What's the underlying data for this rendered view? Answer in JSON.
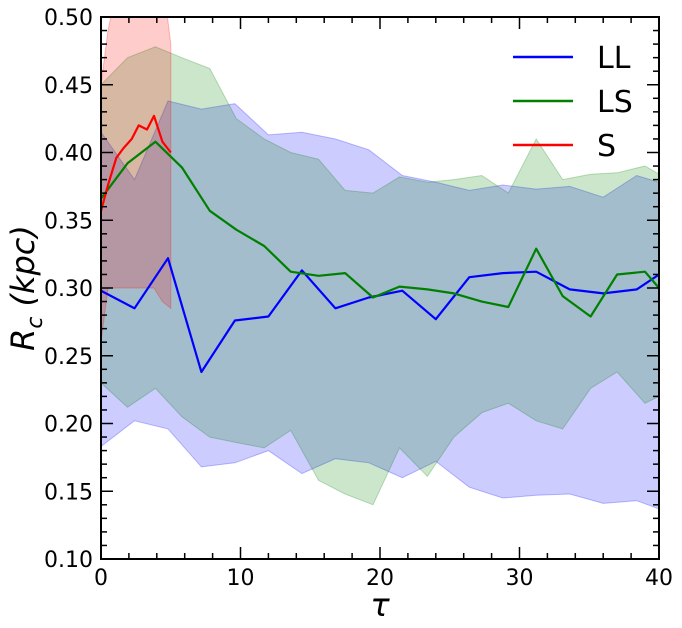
{
  "chart_data": {
    "type": "line",
    "xlabel": "τ",
    "ylabel_main": "R",
    "ylabel_sub": "c",
    "ylabel_unit": "(kpc)",
    "xlim": [
      0,
      40
    ],
    "ylim": [
      0.1,
      0.5
    ],
    "grid": false,
    "legend_position": "top-right",
    "x_ticks": [
      0,
      10,
      20,
      30,
      40
    ],
    "x_tick_labels": [
      "0",
      "10",
      "20",
      "30",
      "40"
    ],
    "y_ticks": [
      0.1,
      0.15,
      0.2,
      0.25,
      0.3,
      0.35,
      0.4,
      0.45,
      0.5
    ],
    "y_tick_labels": [
      "0.10",
      "0.15",
      "0.20",
      "0.25",
      "0.30",
      "0.35",
      "0.40",
      "0.45",
      "0.50"
    ],
    "series": [
      {
        "name": "LL",
        "color": "#0000ff",
        "band_color": "#0000ff",
        "x": [
          0,
          2.4,
          4.8,
          7.2,
          9.6,
          12.0,
          14.4,
          16.8,
          19.2,
          21.6,
          24.0,
          26.4,
          28.8,
          31.2,
          33.6,
          36.0,
          38.4,
          40.0
        ],
        "y": [
          0.298,
          0.285,
          0.322,
          0.238,
          0.276,
          0.279,
          0.313,
          0.285,
          0.293,
          0.298,
          0.277,
          0.308,
          0.311,
          0.312,
          0.299,
          0.296,
          0.299,
          0.31
        ],
        "upper": [
          0.415,
          0.38,
          0.438,
          0.432,
          0.436,
          0.413,
          0.415,
          0.41,
          0.402,
          0.383,
          0.378,
          0.372,
          0.376,
          0.373,
          0.375,
          0.367,
          0.383,
          0.378
        ],
        "lower": [
          0.183,
          0.202,
          0.196,
          0.168,
          0.171,
          0.18,
          0.163,
          0.174,
          0.171,
          0.16,
          0.172,
          0.153,
          0.145,
          0.147,
          0.148,
          0.141,
          0.143,
          0.137
        ]
      },
      {
        "name": "LS",
        "color": "#008000",
        "band_color": "#008000",
        "x": [
          0,
          1.9,
          3.9,
          5.8,
          7.8,
          9.7,
          11.7,
          13.6,
          15.6,
          17.5,
          19.5,
          21.4,
          23.4,
          25.3,
          27.3,
          29.2,
          31.2,
          33.1,
          35.1,
          37.0,
          39.0,
          40.0
        ],
        "y": [
          0.366,
          0.392,
          0.408,
          0.389,
          0.357,
          0.343,
          0.331,
          0.312,
          0.309,
          0.311,
          0.293,
          0.301,
          0.299,
          0.296,
          0.29,
          0.286,
          0.329,
          0.294,
          0.279,
          0.31,
          0.312,
          0.3
        ],
        "upper": [
          0.45,
          0.47,
          0.478,
          0.47,
          0.462,
          0.425,
          0.41,
          0.4,
          0.395,
          0.372,
          0.37,
          0.382,
          0.378,
          0.38,
          0.383,
          0.37,
          0.41,
          0.38,
          0.384,
          0.385,
          0.39,
          0.384
        ],
        "lower": [
          0.23,
          0.212,
          0.226,
          0.205,
          0.19,
          0.186,
          0.182,
          0.195,
          0.158,
          0.148,
          0.14,
          0.182,
          0.161,
          0.19,
          0.208,
          0.215,
          0.202,
          0.196,
          0.226,
          0.238,
          0.215,
          0.22
        ]
      },
      {
        "name": "S",
        "color": "#ff0000",
        "band_color": "#ff0000",
        "x": [
          0,
          0.5,
          1.1,
          1.6,
          2.2,
          2.7,
          3.3,
          3.8,
          4.4,
          5.0
        ],
        "y": [
          0.357,
          0.376,
          0.396,
          0.403,
          0.41,
          0.42,
          0.417,
          0.427,
          0.408,
          0.4
        ],
        "upper": [
          0.45,
          0.49,
          0.52,
          0.53,
          0.54,
          0.54,
          0.54,
          0.54,
          0.53,
          0.48
        ],
        "lower": [
          0.26,
          0.3,
          0.3,
          0.3,
          0.3,
          0.3,
          0.3,
          0.3,
          0.29,
          0.285
        ]
      }
    ]
  }
}
